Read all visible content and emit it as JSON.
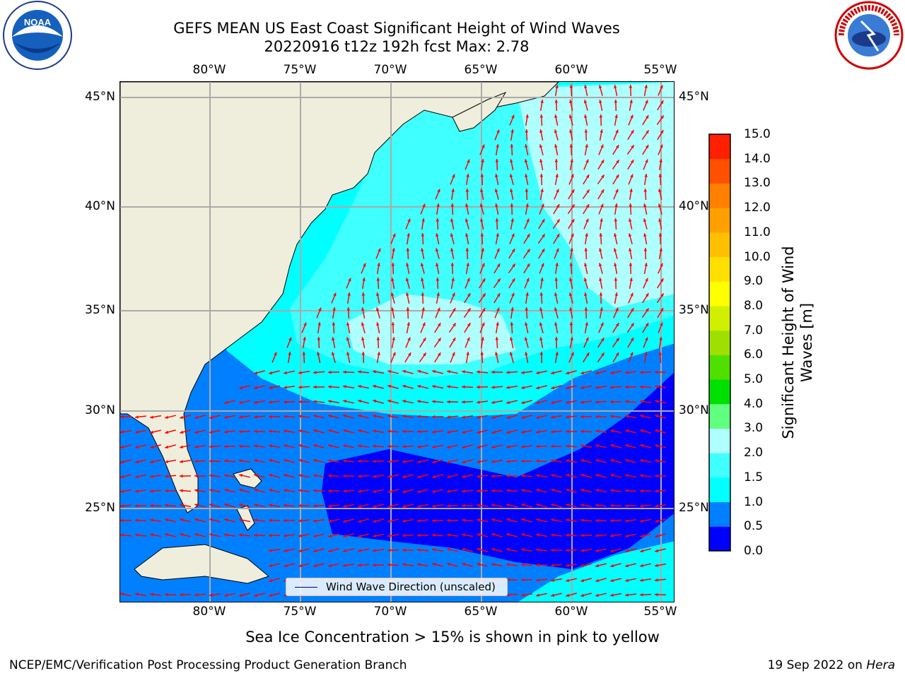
{
  "title_line1": "GEFS MEAN US East Coast Significant Height of Wind Waves",
  "title_line2": "20220916 t12z 192h fcst   Max: 2.78",
  "longitude_ticks": [
    "80°W",
    "75°W",
    "70°W",
    "65°W",
    "60°W",
    "55°W"
  ],
  "latitude_ticks": [
    "45°N",
    "40°N",
    "35°N",
    "30°N",
    "25°N"
  ],
  "legend_label": "Wind Wave Direction (unscaled)",
  "colorbar": {
    "label": "Significant Height of Wind Waves [m]",
    "ticks": [
      "0.0",
      "0.5",
      "1.0",
      "1.5",
      "2.0",
      "3.0",
      "4.0",
      "5.0",
      "6.0",
      "7.0",
      "8.0",
      "9.0",
      "10.0",
      "11.0",
      "12.0",
      "13.0",
      "14.0",
      "15.0"
    ],
    "colors": [
      "#0000ff",
      "#0080ff",
      "#00ffff",
      "#40ffff",
      "#b0ffff",
      "#60ff80",
      "#00e000",
      "#50e000",
      "#a0e000",
      "#d0f000",
      "#ffff00",
      "#ffe000",
      "#ffc000",
      "#ffa000",
      "#ff8000",
      "#ff5000",
      "#ff2000",
      "#ff0000"
    ]
  },
  "caption": "Sea Ice Concentration > 15% is shown in pink to yellow",
  "footer_left": "NCEP/EMC/Verification Post Processing Product Generation Branch",
  "footer_right_date": "19 Sep 2022 on",
  "footer_right_system": "Hera",
  "logo_left_text": "NOAA",
  "colors": {
    "land": "#efeedc",
    "arrow": "#ff0000",
    "grid": "#aaaaaa",
    "ocean_max": "#b0ffff"
  }
}
